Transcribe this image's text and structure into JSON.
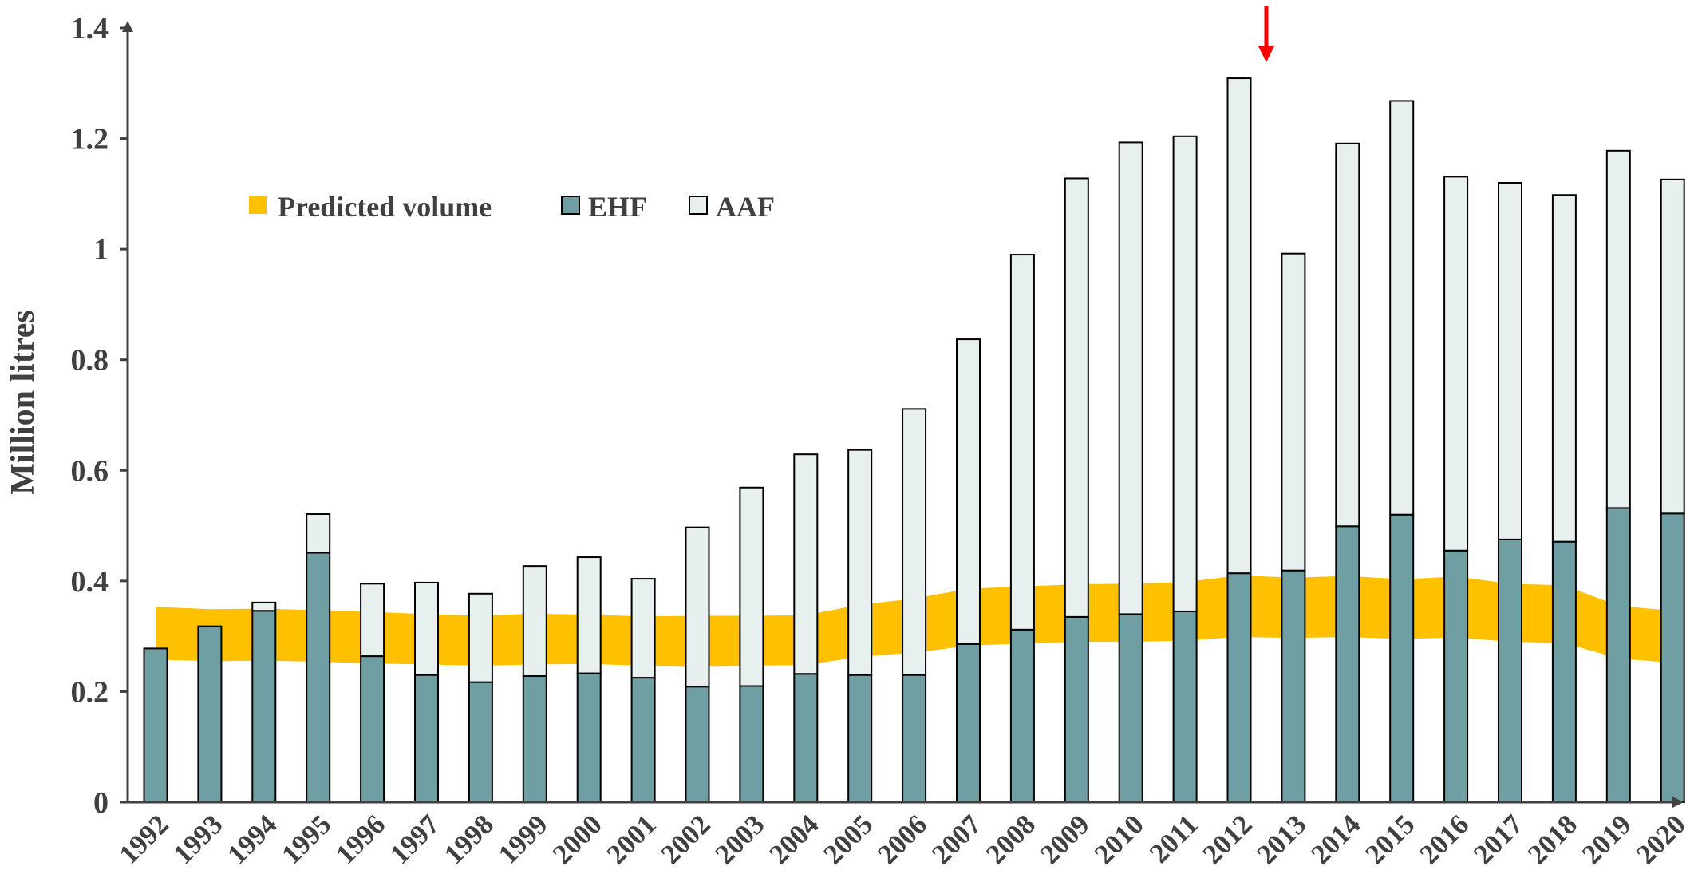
{
  "chart_data": {
    "type": "bar",
    "stacked": true,
    "title": "",
    "xlabel": "",
    "ylabel": "Million litres",
    "ylim": [
      0,
      1.4
    ],
    "yticks": [
      0,
      0.2,
      0.4,
      0.6,
      0.8,
      1,
      1.2,
      1.4
    ],
    "ytick_labels": [
      "0",
      "0.2",
      "0.4",
      "0.6",
      "0.8",
      "1",
      "1.2",
      "1.4"
    ],
    "grid": false,
    "legend_position": "top-left",
    "categories": [
      "1992",
      "1993",
      "1994",
      "1995",
      "1996",
      "1997",
      "1998",
      "1999",
      "2000",
      "2001",
      "2002",
      "2003",
      "2004",
      "2005",
      "2006",
      "2007",
      "2008",
      "2009",
      "2010",
      "2011",
      "2012",
      "2013",
      "2014",
      "2015",
      "2016",
      "2017",
      "2018",
      "2019",
      "2020"
    ],
    "series": [
      {
        "name": "EHF",
        "color": "#6f9fa3",
        "values": [
          0.278,
          0.318,
          0.346,
          0.451,
          0.264,
          0.23,
          0.217,
          0.228,
          0.233,
          0.225,
          0.209,
          0.21,
          0.232,
          0.23,
          0.23,
          0.286,
          0.312,
          0.335,
          0.34,
          0.345,
          0.414,
          0.419,
          0.499,
          0.52,
          0.455,
          0.475,
          0.471,
          0.532,
          0.522
        ]
      },
      {
        "name": "AAF",
        "color": "#e8f0ef",
        "values": [
          0.0,
          0.0,
          0.015,
          0.07,
          0.131,
          0.167,
          0.16,
          0.199,
          0.21,
          0.179,
          0.288,
          0.359,
          0.397,
          0.407,
          0.481,
          0.551,
          0.678,
          0.793,
          0.853,
          0.859,
          0.895,
          0.573,
          0.692,
          0.748,
          0.676,
          0.645,
          0.627,
          0.646,
          0.604
        ]
      }
    ],
    "band": {
      "name": "Predicted volume",
      "color": "#ffc000",
      "lower": [
        0.258,
        0.255,
        0.256,
        0.254,
        0.251,
        0.249,
        0.247,
        0.249,
        0.25,
        0.247,
        0.246,
        0.247,
        0.248,
        0.263,
        0.27,
        0.283,
        0.287,
        0.29,
        0.29,
        0.292,
        0.299,
        0.297,
        0.299,
        0.295,
        0.298,
        0.29,
        0.288,
        0.26,
        0.252
      ],
      "upper": [
        0.353,
        0.349,
        0.35,
        0.347,
        0.344,
        0.34,
        0.337,
        0.341,
        0.339,
        0.336,
        0.337,
        0.337,
        0.338,
        0.357,
        0.368,
        0.386,
        0.39,
        0.394,
        0.395,
        0.398,
        0.41,
        0.406,
        0.409,
        0.403,
        0.408,
        0.395,
        0.392,
        0.355,
        0.346
      ]
    },
    "annotation": {
      "type": "arrow",
      "color": "#ff0000",
      "between": [
        "2012",
        "2013"
      ]
    }
  }
}
